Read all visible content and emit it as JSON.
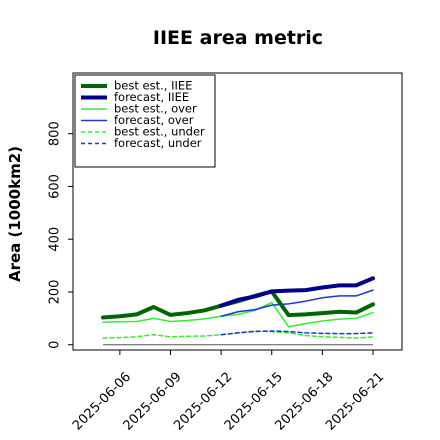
{
  "chart_data": {
    "type": "line",
    "title": "IIEE area metric",
    "ylabel": "Area (1000km2)",
    "xlabel": "",
    "x": [
      "2025-06-05",
      "2025-06-06",
      "2025-06-07",
      "2025-06-08",
      "2025-06-09",
      "2025-06-10",
      "2025-06-11",
      "2025-06-12",
      "2025-06-13",
      "2025-06-14",
      "2025-06-15",
      "2025-06-16",
      "2025-06-17",
      "2025-06-18",
      "2025-06-19",
      "2025-06-20",
      "2025-06-21"
    ],
    "xticks": [
      "2025-06-06",
      "2025-06-09",
      "2025-06-12",
      "2025-06-15",
      "2025-06-18",
      "2025-06-21"
    ],
    "xtick_colors": [
      "#000000",
      "#000000",
      "#228B22",
      "#000000",
      "#000000",
      "#000000"
    ],
    "yticks": [
      0,
      200,
      400,
      600,
      800
    ],
    "ylim": [
      -20,
      1030
    ],
    "grid": false,
    "legend_position": "top-left",
    "reference_line": 0,
    "series": [
      {
        "name": "best est., IIEE",
        "color": "#006400",
        "dash": "",
        "width": 4,
        "values": [
          103,
          108,
          115,
          143,
          113,
          120,
          130,
          148,
          165,
          185,
          202,
          112,
          115,
          120,
          125,
          122,
          153
        ]
      },
      {
        "name": "forecast, IIEE",
        "color": "#00008B",
        "dash": "",
        "width": 4,
        "values": [
          null,
          null,
          null,
          null,
          null,
          null,
          null,
          148,
          170,
          183,
          202,
          205,
          207,
          217,
          225,
          225,
          252
        ]
      },
      {
        "name": "best est., over",
        "color": "#33ee33",
        "dash": "",
        "width": 1.5,
        "values": [
          85,
          87,
          88,
          100,
          88,
          92,
          98,
          108,
          115,
          130,
          160,
          68,
          80,
          90,
          97,
          100,
          122
        ]
      },
      {
        "name": "forecast, over",
        "color": "#2233dd",
        "dash": "",
        "width": 1.5,
        "values": [
          null,
          null,
          null,
          null,
          null,
          null,
          null,
          108,
          125,
          133,
          150,
          155,
          165,
          178,
          185,
          185,
          207
        ]
      },
      {
        "name": "best est., under",
        "color": "#33ee33",
        "dash": "4,3",
        "width": 1.5,
        "values": [
          25,
          27,
          30,
          38,
          30,
          32,
          33,
          38,
          45,
          52,
          50,
          45,
          35,
          30,
          28,
          25,
          30
        ]
      },
      {
        "name": "forecast, under",
        "color": "#2233dd",
        "dash": "4,3",
        "width": 1.5,
        "values": [
          null,
          null,
          null,
          null,
          null,
          null,
          null,
          38,
          45,
          50,
          52,
          50,
          45,
          43,
          42,
          42,
          45
        ]
      }
    ]
  }
}
